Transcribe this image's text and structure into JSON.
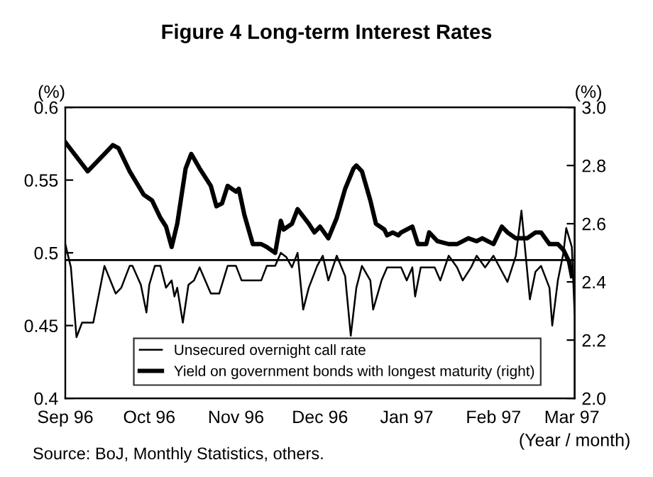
{
  "chart_data": {
    "type": "line",
    "title": "Figure 4 Long-term Interest Rates",
    "ylabel": "(%)",
    "y2label": "(%)",
    "xlabel": "(Year / month)",
    "annotations": [
      "Source: BoJ, Monthly Statistics, others."
    ],
    "xlim": [
      "1996-09-01",
      "1997-03-02"
    ],
    "xticks": [
      {
        "value": "1996-09-01",
        "label": "Sep 96"
      },
      {
        "value": "1996-10-01",
        "label": "Oct 96"
      },
      {
        "value": "1996-11-01",
        "label": "Nov 96"
      },
      {
        "value": "1996-12-01",
        "label": "Dec 96"
      },
      {
        "value": "1997-01-01",
        "label": "Jan 97"
      },
      {
        "value": "1997-02-01",
        "label": "Feb 97"
      },
      {
        "value": "1997-03-01",
        "label": "Mar 97"
      }
    ],
    "ylim": [
      0.4,
      0.6
    ],
    "yticks": [
      0.4,
      0.45,
      0.5,
      0.55,
      0.6
    ],
    "y2lim": [
      2.0,
      3.0
    ],
    "y2ticks": [
      {
        "value": 2.0,
        "label": "2.0"
      },
      2.2,
      2.4,
      2.6,
      2.8,
      {
        "value": 3.0,
        "label": "3.0"
      }
    ],
    "grid": false,
    "legend": "bottom left",
    "marker": "none",
    "ref_lines": [
      {
        "axis": "y",
        "value": 0.495,
        "label": null,
        "color": "#000000"
      }
    ],
    "series": [
      {
        "name": "Unsecured overnight call rate",
        "color": "#000000",
        "axis": "y",
        "x": [
          "1996-09-01",
          "1996-09-03",
          "1996-09-05",
          "1996-09-07",
          "1996-09-11",
          "1996-09-15",
          "1996-09-19",
          "1996-09-21",
          "1996-09-24",
          "1996-09-25",
          "1996-09-28",
          "1996-09-30",
          "1996-10-01",
          "1996-10-03",
          "1996-10-05",
          "1996-10-07",
          "1996-10-09",
          "1996-10-10",
          "1996-10-11",
          "1996-10-13",
          "1996-10-15",
          "1996-10-17",
          "1996-10-19",
          "1996-10-23",
          "1996-10-26",
          "1996-10-29",
          "1996-11-01",
          "1996-11-03",
          "1996-11-10",
          "1996-11-12",
          "1996-11-15",
          "1996-11-17",
          "1996-11-19",
          "1996-11-21",
          "1996-11-23",
          "1996-11-25",
          "1996-11-27",
          "1996-11-30",
          "1996-12-02",
          "1996-12-04",
          "1996-12-07",
          "1996-12-10",
          "1996-12-12",
          "1996-12-14",
          "1996-12-16",
          "1996-12-19",
          "1996-12-20",
          "1996-12-23",
          "1996-12-25",
          "1996-12-30",
          "1997-01-01",
          "1997-01-03",
          "1997-01-04",
          "1997-01-06",
          "1997-01-11",
          "1997-01-13",
          "1997-01-16",
          "1997-01-19",
          "1997-01-21",
          "1997-01-24",
          "1997-01-26",
          "1997-01-29",
          "1997-02-01",
          "1997-02-06",
          "1997-02-09",
          "1997-02-11",
          "1997-02-14",
          "1997-02-16",
          "1997-02-18",
          "1997-02-21",
          "1997-02-22",
          "1997-02-24",
          "1997-02-26",
          "1997-02-27",
          "1997-03-01",
          "1997-03-02"
        ],
        "values": [
          0.506,
          0.49,
          0.442,
          0.452,
          0.452,
          0.491,
          0.472,
          0.476,
          0.491,
          0.491,
          0.478,
          0.459,
          0.478,
          0.491,
          0.491,
          0.476,
          0.481,
          0.47,
          0.476,
          0.452,
          0.478,
          0.481,
          0.49,
          0.472,
          0.472,
          0.491,
          0.491,
          0.481,
          0.481,
          0.491,
          0.491,
          0.5,
          0.497,
          0.49,
          0.5,
          0.461,
          0.476,
          0.491,
          0.498,
          0.481,
          0.498,
          0.484,
          0.443,
          0.476,
          0.491,
          0.481,
          0.461,
          0.481,
          0.49,
          0.49,
          0.481,
          0.49,
          0.47,
          0.49,
          0.49,
          0.481,
          0.498,
          0.49,
          0.481,
          0.49,
          0.498,
          0.49,
          0.498,
          0.48,
          0.498,
          0.529,
          0.468,
          0.487,
          0.491,
          0.476,
          0.45,
          0.481,
          0.5,
          0.517,
          0.504,
          0.458
        ]
      },
      {
        "name": "Yield on government bonds with longest maturity (right)",
        "color": "#000000",
        "axis": "y2",
        "x": [
          "1996-09-01",
          "1996-09-09",
          "1996-09-12",
          "1996-09-15",
          "1996-09-18",
          "1996-09-20",
          "1996-09-24",
          "1996-09-29",
          "1996-10-02",
          "1996-10-05",
          "1996-10-07",
          "1996-10-09",
          "1996-10-11",
          "1996-10-14",
          "1996-10-16",
          "1996-10-19",
          "1996-10-23",
          "1996-10-25",
          "1996-10-27",
          "1996-10-29",
          "1996-11-01",
          "1996-11-02",
          "1996-11-04",
          "1996-11-07",
          "1996-11-10",
          "1996-11-12",
          "1996-11-15",
          "1996-11-17",
          "1996-11-18",
          "1996-11-21",
          "1996-11-23",
          "1996-11-27",
          "1996-11-29",
          "1996-12-01",
          "1996-12-04",
          "1996-12-07",
          "1996-12-10",
          "1996-12-13",
          "1996-12-14",
          "1996-12-16",
          "1996-12-19",
          "1996-12-21",
          "1996-12-24",
          "1996-12-25",
          "1996-12-27",
          "1996-12-29",
          "1996-12-30",
          "1997-01-03",
          "1997-01-05",
          "1997-01-08",
          "1997-01-09",
          "1997-01-12",
          "1997-01-16",
          "1997-01-19",
          "1997-01-23",
          "1997-01-26",
          "1997-01-28",
          "1997-02-01",
          "1997-02-04",
          "1997-02-06",
          "1997-02-09",
          "1997-02-13",
          "1997-02-16",
          "1997-02-18",
          "1997-02-21",
          "1997-02-24",
          "1997-02-26",
          "1997-02-28",
          "1997-03-01"
        ],
        "values": [
          2.88,
          2.78,
          2.81,
          2.84,
          2.87,
          2.86,
          2.78,
          2.7,
          2.68,
          2.62,
          2.59,
          2.52,
          2.6,
          2.79,
          2.84,
          2.79,
          2.73,
          2.66,
          2.67,
          2.73,
          2.71,
          2.72,
          2.63,
          2.53,
          2.53,
          2.52,
          2.5,
          2.61,
          2.58,
          2.6,
          2.65,
          2.6,
          2.57,
          2.59,
          2.55,
          2.62,
          2.72,
          2.79,
          2.8,
          2.78,
          2.68,
          2.6,
          2.58,
          2.56,
          2.57,
          2.56,
          2.57,
          2.59,
          2.53,
          2.53,
          2.57,
          2.54,
          2.53,
          2.53,
          2.55,
          2.54,
          2.55,
          2.53,
          2.59,
          2.57,
          2.55,
          2.55,
          2.57,
          2.57,
          2.53,
          2.53,
          2.51,
          2.47,
          2.42
        ]
      }
    ]
  }
}
